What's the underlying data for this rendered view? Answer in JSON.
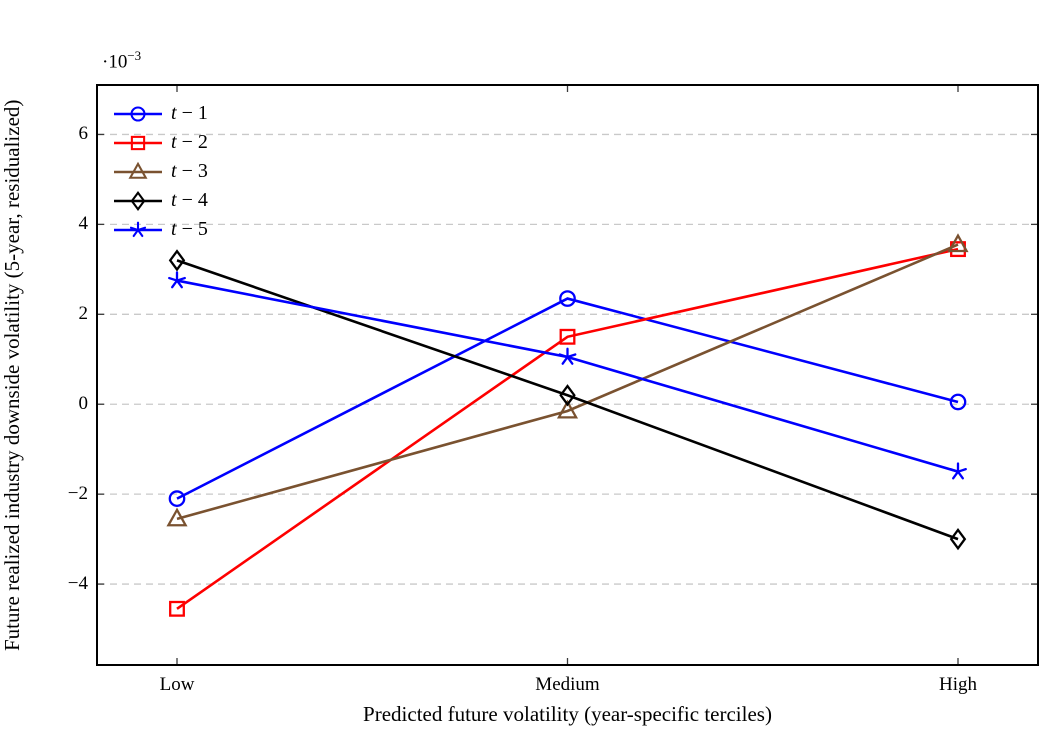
{
  "figure": {
    "y_multiplier_base": "·10",
    "y_multiplier_exp": "−3"
  },
  "chart_data": {
    "type": "line",
    "title": "",
    "xlabel": "Predicted future volatility (year-specific terciles)",
    "ylabel": "Future realized industry downside volatility (5-year, residualized)",
    "y_unit_multiplier": "1e-3",
    "categories": [
      "Low",
      "Medium",
      "High"
    ],
    "series": [
      {
        "name": "t − 1",
        "marker": "circle",
        "color": "#0000fe",
        "values": [
          -2.1,
          2.35,
          0.05
        ]
      },
      {
        "name": "t − 2",
        "marker": "square",
        "color": "#fe0000",
        "values": [
          -4.55,
          1.5,
          3.45
        ]
      },
      {
        "name": "t − 3",
        "marker": "triangle",
        "color": "#7a5230",
        "values": [
          -2.55,
          -0.15,
          3.55
        ]
      },
      {
        "name": "t − 4",
        "marker": "diamond",
        "color": "#000000",
        "values": [
          3.2,
          0.2,
          -3.0
        ]
      },
      {
        "name": "t − 5",
        "marker": "star",
        "color": "#0000fe",
        "values": [
          2.75,
          1.05,
          -1.5
        ]
      }
    ],
    "ylim": [
      -5.8,
      7.1
    ],
    "yticks": [
      6,
      4,
      2,
      0,
      -2,
      -4
    ],
    "ytick_labels": [
      "6",
      "4",
      "2",
      "0",
      "−2",
      "−4"
    ],
    "grid": "horizontal-dashed",
    "legend_position": "top-left-inside"
  },
  "colors": {
    "background": "#ffffff",
    "axis": "#000000",
    "grid": "#c9c9c9",
    "tick": "#3a3a3a"
  }
}
